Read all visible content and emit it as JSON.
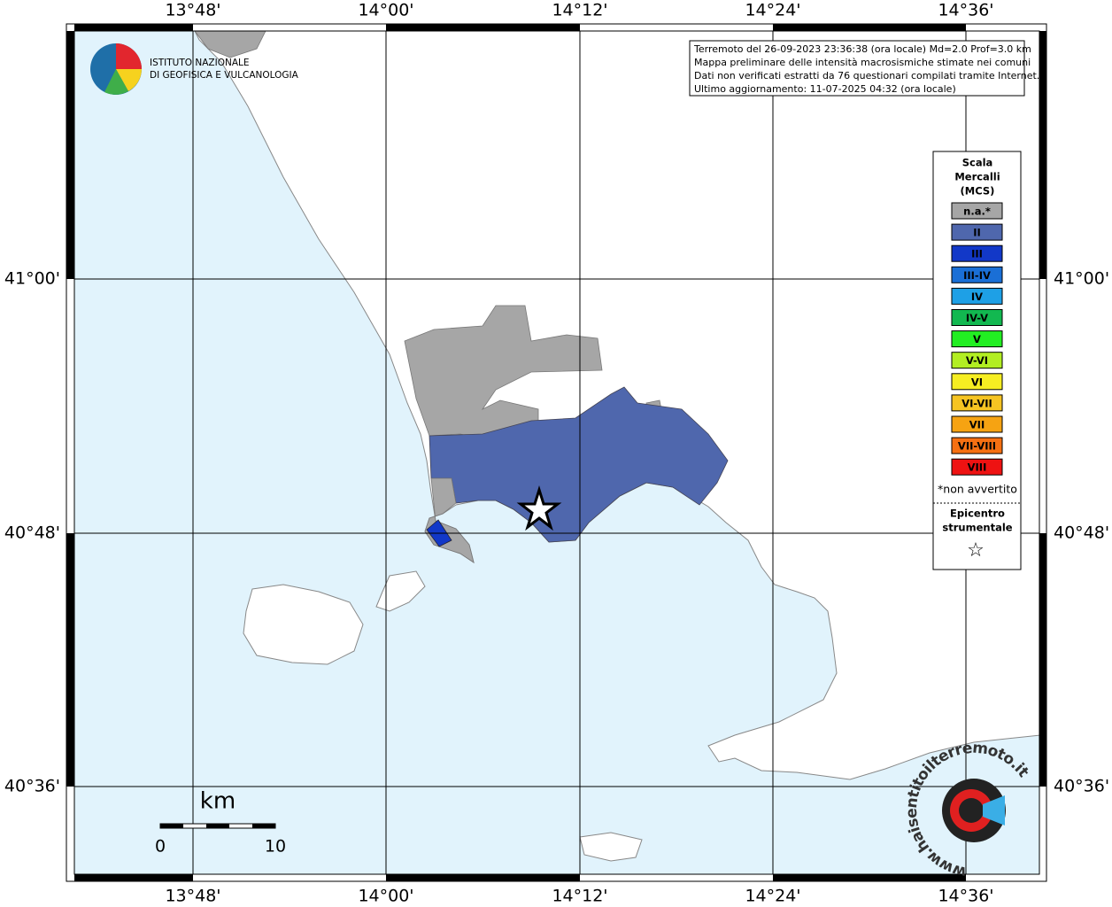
{
  "header_logo": {
    "line1": "ISTITUTO NAZIONALE",
    "line2": "DI GEOFISICA E VULCANOLOGIA"
  },
  "info": {
    "lines": [
      "Terremoto del 26-09-2023 23:36:38 (ora locale) Md=2.0 Prof=3.0 km",
      "Mappa preliminare delle intensità macrosismiche stimate nei comuni",
      "Dati non verificati estratti da 76 questionari compilati tramite Internet.",
      "Ultimo aggiornamento: 11-07-2025 04:32 (ora locale)"
    ]
  },
  "map": {
    "lon_labels": [
      "13°48'",
      "14°00'",
      "14°12'",
      "14°24'",
      "14°36'"
    ],
    "lat_labels": [
      "41°00'",
      "40°48'",
      "40°36'"
    ]
  },
  "legend": {
    "title_lines": [
      "Scala",
      "Mercalli",
      "(MCS)"
    ],
    "classes": [
      {
        "label": "n.a.*",
        "color": "#a6a6a6"
      },
      {
        "label": "II",
        "color": "#4f67ad"
      },
      {
        "label": "III",
        "color": "#1238c8"
      },
      {
        "label": "III-IV",
        "color": "#1a6fd6"
      },
      {
        "label": "IV",
        "color": "#1ea0e6"
      },
      {
        "label": "IV-V",
        "color": "#12b850"
      },
      {
        "label": "V",
        "color": "#22ee22"
      },
      {
        "label": "V-VI",
        "color": "#b2ee22"
      },
      {
        "label": "VI",
        "color": "#f6ee22"
      },
      {
        "label": "VI-VII",
        "color": "#f6c422"
      },
      {
        "label": "VII",
        "color": "#f6a312"
      },
      {
        "label": "VII-VIII",
        "color": "#f67012"
      },
      {
        "label": "VIII",
        "color": "#ee1212"
      }
    ],
    "footnote": "*non avvertito",
    "epicenter_lines": [
      "Epicentro",
      "strumentale"
    ],
    "epicenter_symbol": "☆"
  },
  "scale_bar": {
    "unit": "km",
    "labels": [
      "0",
      "10"
    ]
  },
  "footer_logo": {
    "url": "www.haisentitoilterremoto.it"
  }
}
